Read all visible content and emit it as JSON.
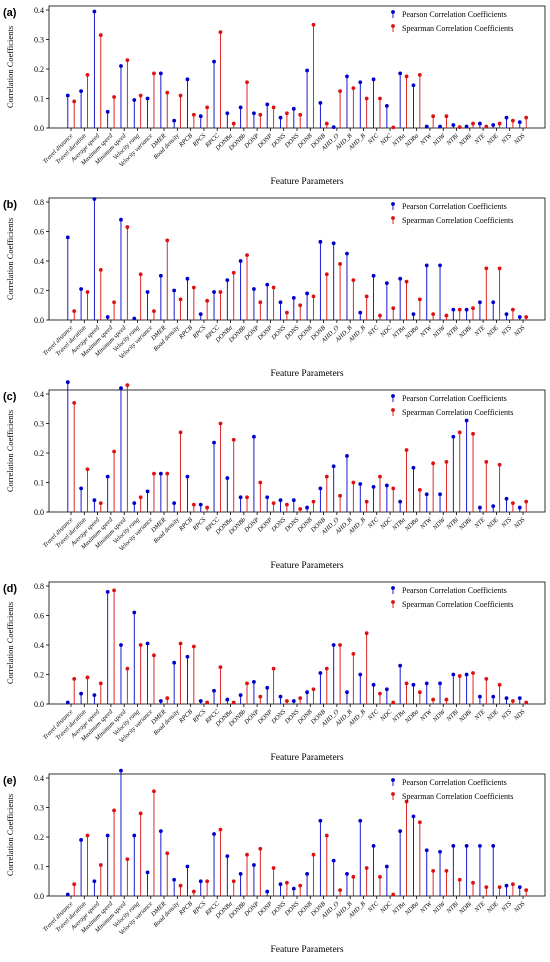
{
  "figure": {
    "legend": [
      "Pearson Correlation Coefficients",
      "Spearman Correlation Coefficients"
    ],
    "colors": {
      "pearson": "#0000cc",
      "spearman": "#dd1111"
    }
  },
  "chart_data": [
    {
      "type": "stem",
      "panel": "(a)",
      "ylabel": "Correlation Coefficients",
      "xlabel": "Feature Parameters",
      "ylim": [
        0,
        0.4
      ],
      "yticks": [
        "0.0",
        "0.1",
        "0.2",
        "0.3",
        "0.4"
      ],
      "categories": [
        "Travel distance",
        "Travel duration",
        "Average speed",
        "Maximum speed",
        "Minimum speed",
        "Velocity rang",
        "Velocity variance",
        "DMER",
        "Road density",
        "RPCB",
        "RPCS",
        "RPCC",
        "DONBa",
        "DONBb",
        "DONP",
        "DONP",
        "DONS",
        "DONS",
        "DONB",
        "DONB",
        "AHD_O",
        "AHD_B",
        "AHD_B",
        "NTC",
        "NDC",
        "NTBa",
        "NDBa",
        "NTW",
        "NDW",
        "NTBi",
        "NDBi",
        "NTE",
        "NDE",
        "NTS",
        "NDS"
      ],
      "series": [
        {
          "name": "Pearson Correlation Coefficients",
          "values": [
            0.11,
            0.125,
            0.395,
            0.055,
            0.21,
            0.095,
            0.1,
            0.185,
            0.025,
            0.165,
            0.04,
            0.225,
            0.05,
            0.07,
            0.05,
            0.08,
            0.035,
            0.065,
            0.195,
            0.085,
            0.003,
            0.175,
            0.155,
            0.165,
            0.075,
            0.185,
            0.145,
            0.005,
            0.005,
            0.01,
            0.005,
            0.015,
            0.01,
            0.035,
            0.02
          ]
        },
        {
          "name": "Spearman Correlation Coefficients",
          "values": [
            0.09,
            0.18,
            0.315,
            0.105,
            0.23,
            0.11,
            0.185,
            0.12,
            0.11,
            0.045,
            0.07,
            0.325,
            0.015,
            0.155,
            0.045,
            0.07,
            0.05,
            0.045,
            0.35,
            0.015,
            0.125,
            0.135,
            0.1,
            0.1,
            0.002,
            0.175,
            0.18,
            0.04,
            0.04,
            0.003,
            0.015,
            0.005,
            0.015,
            0.025,
            0.035
          ]
        }
      ]
    },
    {
      "type": "stem",
      "panel": "(b)",
      "ylabel": "Correlation Coefficients",
      "xlabel": "Feature Parameters",
      "ylim": [
        0,
        0.8
      ],
      "yticks": [
        "0.0",
        "0.2",
        "0.4",
        "0.6",
        "0.8"
      ],
      "categories": [
        "Travel distance",
        "Travel duration",
        "Average speed",
        "Maximum speed",
        "Minimum speed",
        "Velocity rang",
        "Velocity variance",
        "DMER",
        "Road density",
        "RPCB",
        "RPCS",
        "RPCC",
        "DONBa",
        "DONBb",
        "DONP",
        "DONP",
        "DONS",
        "DONS",
        "DONB",
        "DONB",
        "AHD_O",
        "AHD_B",
        "AHD_B",
        "NTC",
        "NDC",
        "NTBa",
        "NDBa",
        "NTW",
        "NDW",
        "NTBi",
        "NDBi",
        "NTE",
        "NDE",
        "NTS",
        "NDS"
      ],
      "series": [
        {
          "name": "Pearson Correlation Coefficients",
          "values": [
            0.56,
            0.21,
            0.82,
            0.02,
            0.68,
            0.01,
            0.19,
            0.3,
            0.2,
            0.28,
            0.04,
            0.19,
            0.27,
            0.4,
            0.21,
            0.24,
            0.12,
            0.15,
            0.18,
            0.53,
            0.52,
            0.45,
            0.05,
            0.3,
            0.25,
            0.28,
            0.04,
            0.37,
            0.37,
            0.07,
            0.07,
            0.12,
            0.12,
            0.04,
            0.02
          ]
        },
        {
          "name": "Spearman Correlation Coefficients",
          "values": [
            0.06,
            0.19,
            0.34,
            0.12,
            0.63,
            0.31,
            0.06,
            0.54,
            0.14,
            0.22,
            0.13,
            0.19,
            0.32,
            0.44,
            0.12,
            0.22,
            0.05,
            0.1,
            0.16,
            0.31,
            0.38,
            0.27,
            0.16,
            0.03,
            0.08,
            0.26,
            0.14,
            0.04,
            0.03,
            0.07,
            0.08,
            0.35,
            0.35,
            0.07,
            0.02
          ]
        }
      ]
    },
    {
      "type": "stem",
      "panel": "(c)",
      "ylabel": "Correlation Coefficients",
      "xlabel": "Feature Parameters",
      "ylim": [
        0,
        0.4
      ],
      "yticks": [
        "0.0",
        "0.1",
        "0.2",
        "0.3",
        "0.4"
      ],
      "categories": [
        "Travel distance",
        "Travel duration",
        "Average speed",
        "Maximum speed",
        "Minimum speed",
        "Velocity rang",
        "Velocity variance",
        "DMER",
        "Road density",
        "RPCB",
        "RPCS",
        "RPCC",
        "DONBa",
        "DONBb",
        "DONP",
        "DONP",
        "DONS",
        "DONS",
        "DONB",
        "DONB",
        "AHD_O",
        "AHD_B",
        "AHD_B",
        "NTC",
        "NDC",
        "NTBa",
        "NDBa",
        "NTW",
        "NDW",
        "NTBi",
        "NDBi",
        "NTE",
        "NDE",
        "NTS",
        "NDS"
      ],
      "series": [
        {
          "name": "Pearson Correlation Coefficients",
          "values": [
            0.44,
            0.08,
            0.04,
            0.12,
            0.42,
            0.03,
            0.07,
            0.13,
            0.03,
            0.12,
            0.025,
            0.235,
            0.115,
            0.05,
            0.255,
            0.05,
            0.04,
            0.04,
            0.015,
            0.08,
            0.155,
            0.19,
            0.095,
            0.085,
            0.09,
            0.035,
            0.15,
            0.06,
            0.06,
            0.255,
            0.31,
            0.015,
            0.02,
            0.045,
            0.015
          ]
        },
        {
          "name": "Spearman Correlation Coefficients",
          "values": [
            0.37,
            0.145,
            0.03,
            0.205,
            0.43,
            0.05,
            0.13,
            0.13,
            0.27,
            0.025,
            0.015,
            0.3,
            0.245,
            0.05,
            0.1,
            0.03,
            0.025,
            0.01,
            0.035,
            0.12,
            0.055,
            0.1,
            0.035,
            0.12,
            0.08,
            0.21,
            0.075,
            0.165,
            0.17,
            0.27,
            0.265,
            0.17,
            0.16,
            0.03,
            0.035
          ]
        }
      ]
    },
    {
      "type": "stem",
      "panel": "(d)",
      "ylabel": "Correlation Coefficients",
      "xlabel": "Feature Parameters",
      "ylim": [
        0,
        0.8
      ],
      "yticks": [
        "0.0",
        "0.2",
        "0.4",
        "0.6",
        "0.8"
      ],
      "categories": [
        "Travel distance",
        "Travel duration",
        "Average speed",
        "Maximum speed",
        "Minimum speed",
        "Velocity rang",
        "Velocity variance",
        "DMER",
        "Road density",
        "RPCB",
        "RPCS",
        "RPCC",
        "DONBa",
        "DONBb",
        "DONP",
        "DONP",
        "DONS",
        "DONS",
        "DONB",
        "DONB",
        "AHD_O",
        "AHD_B",
        "AHD_B",
        "NTC",
        "NDC",
        "NTBa",
        "NDBa",
        "NTW",
        "NDW",
        "NTBi",
        "NDBi",
        "NTE",
        "NDE",
        "NTS",
        "NDS"
      ],
      "series": [
        {
          "name": "Pearson Correlation Coefficients",
          "values": [
            0.01,
            0.07,
            0.06,
            0.76,
            0.4,
            0.62,
            0.41,
            0.02,
            0.28,
            0.32,
            0.02,
            0.09,
            0.03,
            0.06,
            0.15,
            0.11,
            0.05,
            0.02,
            0.08,
            0.21,
            0.4,
            0.08,
            0.2,
            0.13,
            0.1,
            0.26,
            0.13,
            0.14,
            0.14,
            0.2,
            0.2,
            0.05,
            0.05,
            0.04,
            0.04
          ]
        },
        {
          "name": "Spearman Correlation Coefficients",
          "values": [
            0.17,
            0.18,
            0.14,
            0.77,
            0.24,
            0.4,
            0.33,
            0.04,
            0.41,
            0.39,
            0.01,
            0.25,
            0.01,
            0.14,
            0.05,
            0.24,
            0.02,
            0.04,
            0.1,
            0.24,
            0.4,
            0.34,
            0.48,
            0.07,
            0.01,
            0.14,
            0.08,
            0.03,
            0.03,
            0.19,
            0.21,
            0.17,
            0.13,
            0.02,
            0.01
          ]
        }
      ]
    },
    {
      "type": "stem",
      "panel": "(e)",
      "ylabel": "Correlation Coefficients",
      "xlabel": "Feature Parameters",
      "ylim": [
        0,
        0.4
      ],
      "yticks": [
        "0.0",
        "0.1",
        "0.2",
        "0.3",
        "0.4"
      ],
      "categories": [
        "Travel distance",
        "Travel duration",
        "Average speed",
        "Maximum speed",
        "Minimum speed",
        "Velocity rang",
        "Velocity variance",
        "DMER",
        "Road density",
        "RPCB",
        "RPCS",
        "RPCC",
        "DONBa",
        "DONBb",
        "DONP",
        "DONP",
        "DONS",
        "DONS",
        "DONB",
        "DONB",
        "AHD_O",
        "AHD_B",
        "AHD_B",
        "NTC",
        "NDC",
        "NTBa",
        "NDBa",
        "NTW",
        "NDW",
        "NTBi",
        "NDBi",
        "NTE",
        "NDE",
        "NTS",
        "NDS"
      ],
      "series": [
        {
          "name": "Pearson Correlation Coefficients",
          "values": [
            0.005,
            0.19,
            0.05,
            0.205,
            0.425,
            0.205,
            0.08,
            0.22,
            0.055,
            0.1,
            0.05,
            0.21,
            0.135,
            0.075,
            0.105,
            0.015,
            0.04,
            0.025,
            0.075,
            0.255,
            0.12,
            0.075,
            0.255,
            0.17,
            0.1,
            0.22,
            0.27,
            0.155,
            0.15,
            0.17,
            0.17,
            0.17,
            0.17,
            0.035,
            0.03
          ]
        },
        {
          "name": "Spearman Correlation Coefficients",
          "values": [
            0.04,
            0.205,
            0.105,
            0.29,
            0.125,
            0.28,
            0.355,
            0.145,
            0.035,
            0.015,
            0.05,
            0.225,
            0.05,
            0.14,
            0.16,
            0.095,
            0.045,
            0.035,
            0.14,
            0.205,
            0.02,
            0.065,
            0.095,
            0.065,
            0.005,
            0.32,
            0.25,
            0.085,
            0.085,
            0.055,
            0.045,
            0.03,
            0.03,
            0.04,
            0.02
          ]
        }
      ]
    }
  ]
}
